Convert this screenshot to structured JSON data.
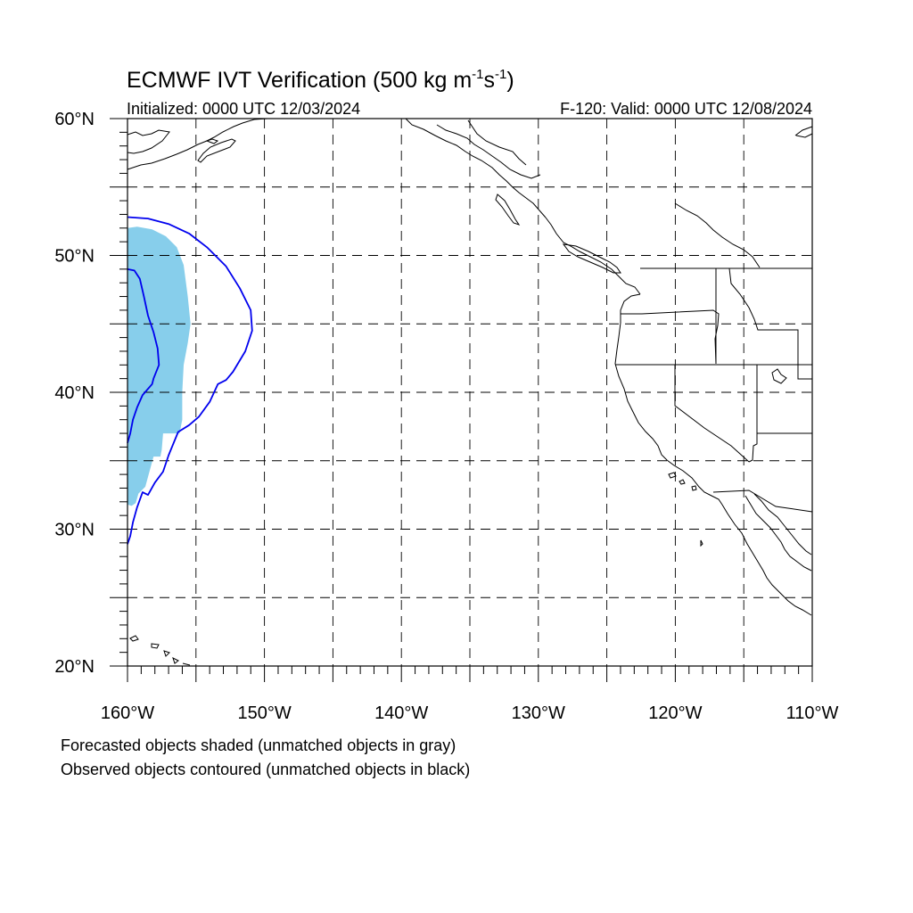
{
  "figure": {
    "title_main": "ECMWF IVT Verification (500 kg m",
    "title_exp1": "-1",
    "title_mid": "s",
    "title_exp2": "-1",
    "title_end": ")",
    "initialized": "Initialized: 0000 UTC 12/03/2024",
    "valid": "F-120: Valid: 0000 UTC 12/08/2024"
  },
  "map": {
    "lon_range": [
      -160,
      -110
    ],
    "lat_range": [
      20,
      60
    ],
    "lat_labels": [
      {
        "lat": 60,
        "text": "60°N"
      },
      {
        "lat": 50,
        "text": "50°N"
      },
      {
        "lat": 40,
        "text": "40°N"
      },
      {
        "lat": 30,
        "text": "30°N"
      },
      {
        "lat": 20,
        "text": "20°N"
      }
    ],
    "lon_labels": [
      {
        "lon": -160,
        "text": "160°W"
      },
      {
        "lon": -150,
        "text": "150°W"
      },
      {
        "lon": -140,
        "text": "140°W"
      },
      {
        "lon": -130,
        "text": "130°W"
      },
      {
        "lon": -120,
        "text": "120°W"
      },
      {
        "lon": -110,
        "text": "110°W"
      }
    ],
    "grid_lons": [
      -155,
      -150,
      -145,
      -140,
      -135,
      -130,
      -125,
      -120,
      -115
    ],
    "grid_lats": [
      55,
      50,
      45,
      40,
      35,
      30,
      25
    ],
    "colors": {
      "forecast_fill": "#87ceeb",
      "observed_contour": "#0000ee",
      "coastline": "#000000",
      "grid": "#000000"
    },
    "forecast_object": {
      "fill_color": "#87ceeb",
      "points": [
        [
          -160.0,
          52.0
        ],
        [
          -159.3,
          52.1
        ],
        [
          -158.2,
          51.9
        ],
        [
          -157.2,
          51.4
        ],
        [
          -156.4,
          50.6
        ],
        [
          -155.9,
          49.3
        ],
        [
          -155.6,
          47.0
        ],
        [
          -155.4,
          45.0
        ],
        [
          -155.6,
          43.6
        ],
        [
          -155.9,
          42.0
        ],
        [
          -156.0,
          40.0
        ],
        [
          -156.0,
          38.0
        ],
        [
          -156.2,
          37.0
        ],
        [
          -157.4,
          37.0
        ],
        [
          -157.5,
          35.8
        ],
        [
          -157.6,
          35.3
        ],
        [
          -158.1,
          35.3
        ],
        [
          -158.7,
          33.1
        ],
        [
          -159.2,
          32.6
        ],
        [
          -159.4,
          31.9
        ],
        [
          -159.7,
          31.7
        ],
        [
          -160.0,
          31.8
        ]
      ]
    },
    "observed_contour_outer": {
      "color": "#0000ee",
      "points": [
        [
          -160.0,
          52.8
        ],
        [
          -158.5,
          52.7
        ],
        [
          -157.0,
          52.3
        ],
        [
          -155.5,
          51.6
        ],
        [
          -154.2,
          50.6
        ],
        [
          -152.8,
          49.2
        ],
        [
          -151.8,
          47.6
        ],
        [
          -151.0,
          46.0
        ],
        [
          -150.9,
          44.5
        ],
        [
          -151.4,
          43.0
        ],
        [
          -152.3,
          41.5
        ],
        [
          -152.8,
          40.9
        ],
        [
          -153.4,
          40.6
        ],
        [
          -154.0,
          39.3
        ],
        [
          -154.8,
          38.2
        ],
        [
          -155.5,
          37.6
        ],
        [
          -156.3,
          37.1
        ],
        [
          -157.0,
          35.4
        ],
        [
          -157.4,
          34.2
        ],
        [
          -158.0,
          33.4
        ],
        [
          -158.5,
          32.5
        ],
        [
          -158.9,
          32.7
        ],
        [
          -159.3,
          31.6
        ],
        [
          -159.6,
          30.5
        ],
        [
          -159.8,
          29.5
        ],
        [
          -160.0,
          28.9
        ]
      ]
    },
    "observed_contour_inner": {
      "color": "#0000ee",
      "points": [
        [
          -160.0,
          49.0
        ],
        [
          -159.5,
          48.9
        ],
        [
          -159.1,
          48.3
        ],
        [
          -158.8,
          47.0
        ],
        [
          -158.5,
          45.6
        ],
        [
          -158.1,
          44.4
        ],
        [
          -157.8,
          43.2
        ],
        [
          -157.7,
          42.0
        ],
        [
          -158.1,
          41.0
        ],
        [
          -158.2,
          40.6
        ],
        [
          -158.9,
          39.8
        ],
        [
          -159.3,
          38.9
        ],
        [
          -159.6,
          38.0
        ],
        [
          -159.8,
          37.0
        ],
        [
          -160.0,
          36.3
        ]
      ]
    }
  },
  "caption": {
    "line1": "Forecasted objects shaded (unmatched objects in gray)",
    "line2": "Observed objects contoured (unmatched objects in black)"
  }
}
